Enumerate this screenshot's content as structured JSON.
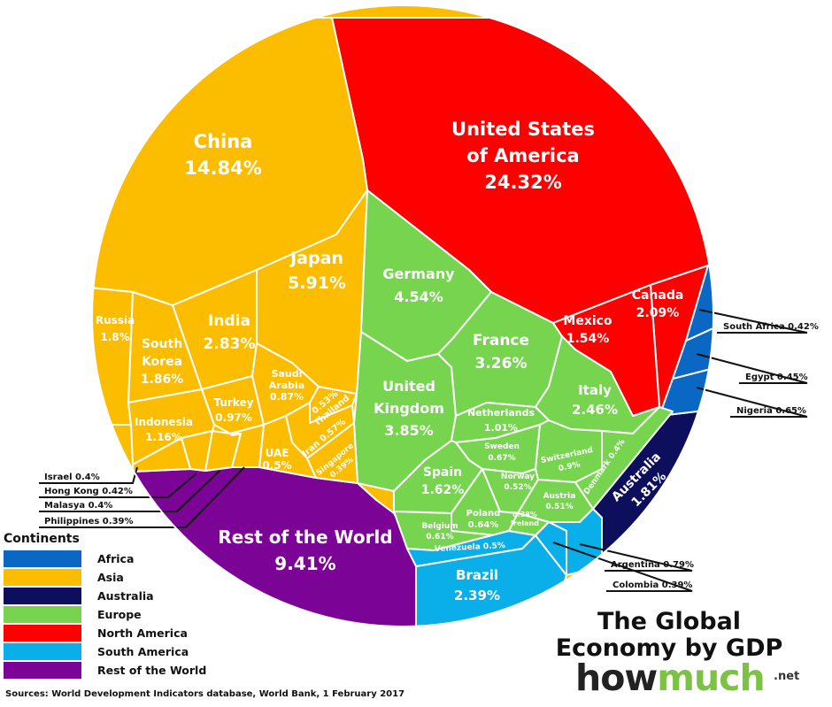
{
  "chart_data": {
    "type": "voronoi-treemap",
    "title": "The Global Economy by GDP",
    "unit": "%",
    "legend": {
      "title": "Continents",
      "placement": "bottom-left",
      "items": [
        {
          "name": "Africa",
          "color": "#0a68c4"
        },
        {
          "name": "Asia",
          "color": "#fcbd00"
        },
        {
          "name": "Australia",
          "color": "#0d0f5c"
        },
        {
          "name": "Europe",
          "color": "#77d44f"
        },
        {
          "name": "North America",
          "color": "#ff0000"
        },
        {
          "name": "South America",
          "color": "#0aaee8"
        },
        {
          "name": "Rest of the World",
          "color": "#7b0396"
        }
      ]
    },
    "cells": [
      {
        "name": "United States of America",
        "continent": "North America",
        "value": 24.32,
        "lines": [
          "United States",
          "of America",
          "24.32%"
        ]
      },
      {
        "name": "China",
        "continent": "Asia",
        "value": 14.84,
        "lines": [
          "China",
          "14.84%"
        ]
      },
      {
        "name": "Rest of the World",
        "continent": "Rest of the World",
        "value": 9.41,
        "lines": [
          "Rest of the World",
          "9.41%"
        ]
      },
      {
        "name": "Japan",
        "continent": "Asia",
        "value": 5.91,
        "lines": [
          "Japan",
          "5.91%"
        ]
      },
      {
        "name": "Germany",
        "continent": "Europe",
        "value": 4.54,
        "lines": [
          "Germany",
          "4.54%"
        ]
      },
      {
        "name": "United Kingdom",
        "continent": "Europe",
        "value": 3.85,
        "lines": [
          "United",
          "Kingdom",
          "3.85%"
        ]
      },
      {
        "name": "France",
        "continent": "Europe",
        "value": 3.26,
        "lines": [
          "France",
          "3.26%"
        ]
      },
      {
        "name": "India",
        "continent": "Asia",
        "value": 2.83,
        "lines": [
          "India",
          "2.83%"
        ]
      },
      {
        "name": "Italy",
        "continent": "Europe",
        "value": 2.46,
        "lines": [
          "Italy",
          "2.46%"
        ]
      },
      {
        "name": "Brazil",
        "continent": "South America",
        "value": 2.39,
        "lines": [
          "Brazil",
          "2.39%"
        ]
      },
      {
        "name": "Canada",
        "continent": "North America",
        "value": 2.09,
        "lines": [
          "Canada",
          "2.09%"
        ]
      },
      {
        "name": "South Korea",
        "continent": "Asia",
        "value": 1.86,
        "lines": [
          "South",
          "Korea",
          "1.86%"
        ]
      },
      {
        "name": "Australia",
        "continent": "Australia",
        "value": 1.81,
        "lines": [
          "Australia",
          "1.81%"
        ]
      },
      {
        "name": "Russia",
        "continent": "Asia",
        "value": 1.8,
        "lines": [
          "Russia",
          "1.8%"
        ]
      },
      {
        "name": "Spain",
        "continent": "Europe",
        "value": 1.62,
        "lines": [
          "Spain",
          "1.62%"
        ]
      },
      {
        "name": "Mexico",
        "continent": "North America",
        "value": 1.54,
        "lines": [
          "Mexico",
          "1.54%"
        ]
      },
      {
        "name": "Indonesia",
        "continent": "Asia",
        "value": 1.16,
        "lines": [
          "Indonesia",
          "1.16%"
        ]
      },
      {
        "name": "Netherlands",
        "continent": "Europe",
        "value": 1.01,
        "lines": [
          "Netherlands",
          "1.01%"
        ]
      },
      {
        "name": "Turkey",
        "continent": "Asia",
        "value": 0.97,
        "lines": [
          "Turkey",
          "0.97%"
        ]
      },
      {
        "name": "Switzerland",
        "continent": "Europe",
        "value": 0.9,
        "lines": [
          "Switzerland",
          "0.9%"
        ]
      },
      {
        "name": "Saudi Arabia",
        "continent": "Asia",
        "value": 0.87,
        "lines": [
          "Saudi",
          "Arabia",
          "0.87%"
        ]
      },
      {
        "name": "Argentina",
        "continent": "South America",
        "value": 0.79,
        "callout": "Argentina 0.79%"
      },
      {
        "name": "Sweden",
        "continent": "Europe",
        "value": 0.67,
        "lines": [
          "Sweden",
          "0.67%"
        ]
      },
      {
        "name": "Nigeria",
        "continent": "Africa",
        "value": 0.65,
        "callout": "Nigeria 0.65%"
      },
      {
        "name": "Poland",
        "continent": "Europe",
        "value": 0.64,
        "lines": [
          "Poland",
          "0.64%"
        ]
      },
      {
        "name": "Belgium",
        "continent": "Europe",
        "value": 0.61,
        "lines": [
          "Belgium",
          "0.61%"
        ]
      },
      {
        "name": "Iran",
        "continent": "Asia",
        "value": 0.57,
        "lines": [
          "Iran 0.57%"
        ]
      },
      {
        "name": "Thailand",
        "continent": "Asia",
        "value": 0.53,
        "lines": [
          "0.53%",
          "Thailand"
        ]
      },
      {
        "name": "Norway",
        "continent": "Europe",
        "value": 0.52,
        "lines": [
          "Norway",
          "0.52%"
        ]
      },
      {
        "name": "Austria",
        "continent": "Europe",
        "value": 0.51,
        "lines": [
          "Austria",
          "0.51%"
        ]
      },
      {
        "name": "Venezuela",
        "continent": "South America",
        "value": 0.5,
        "lines": [
          "Venezuela 0.5%"
        ]
      },
      {
        "name": "UAE",
        "continent": "Asia",
        "value": 0.5,
        "lines": [
          "UAE",
          "0.5%"
        ]
      },
      {
        "name": "Egypt",
        "continent": "Africa",
        "value": 0.45,
        "callout": "Egypt 0.45%"
      },
      {
        "name": "South Africa",
        "continent": "Africa",
        "value": 0.42,
        "callout": "South Africa 0.42%"
      },
      {
        "name": "Hong Kong",
        "continent": "Asia",
        "value": 0.42,
        "callout": "Hong Kong 0.42%"
      },
      {
        "name": "Israel",
        "continent": "Asia",
        "value": 0.4,
        "callout": "Israel 0.4%"
      },
      {
        "name": "Denmark",
        "continent": "Europe",
        "value": 0.4,
        "lines": [
          "Denmark 0.4%"
        ]
      },
      {
        "name": "Malasya",
        "continent": "Asia",
        "value": 0.4,
        "callout": "Malasya 0.4%"
      },
      {
        "name": "Singapore",
        "continent": "Asia",
        "value": 0.39,
        "lines": [
          "Singapore",
          "0.39%"
        ]
      },
      {
        "name": "Philippines",
        "continent": "Asia",
        "value": 0.39,
        "callout": "Philippines 0.39%"
      },
      {
        "name": "Colombia",
        "continent": "South America",
        "value": 0.39,
        "callout": "Colombia 0.39%"
      },
      {
        "name": "Ireland",
        "continent": "Europe",
        "value": 0.38,
        "lines": [
          "0.38%",
          "Ireland"
        ]
      }
    ]
  },
  "branding": {
    "title_line1": "The Global",
    "title_line2": "Economy by GDP",
    "logo_how": "how",
    "logo_much": "much",
    "logo_tld": ".net"
  },
  "source": "Sources: World Development Indicators database, World Bank, 1 February 2017"
}
